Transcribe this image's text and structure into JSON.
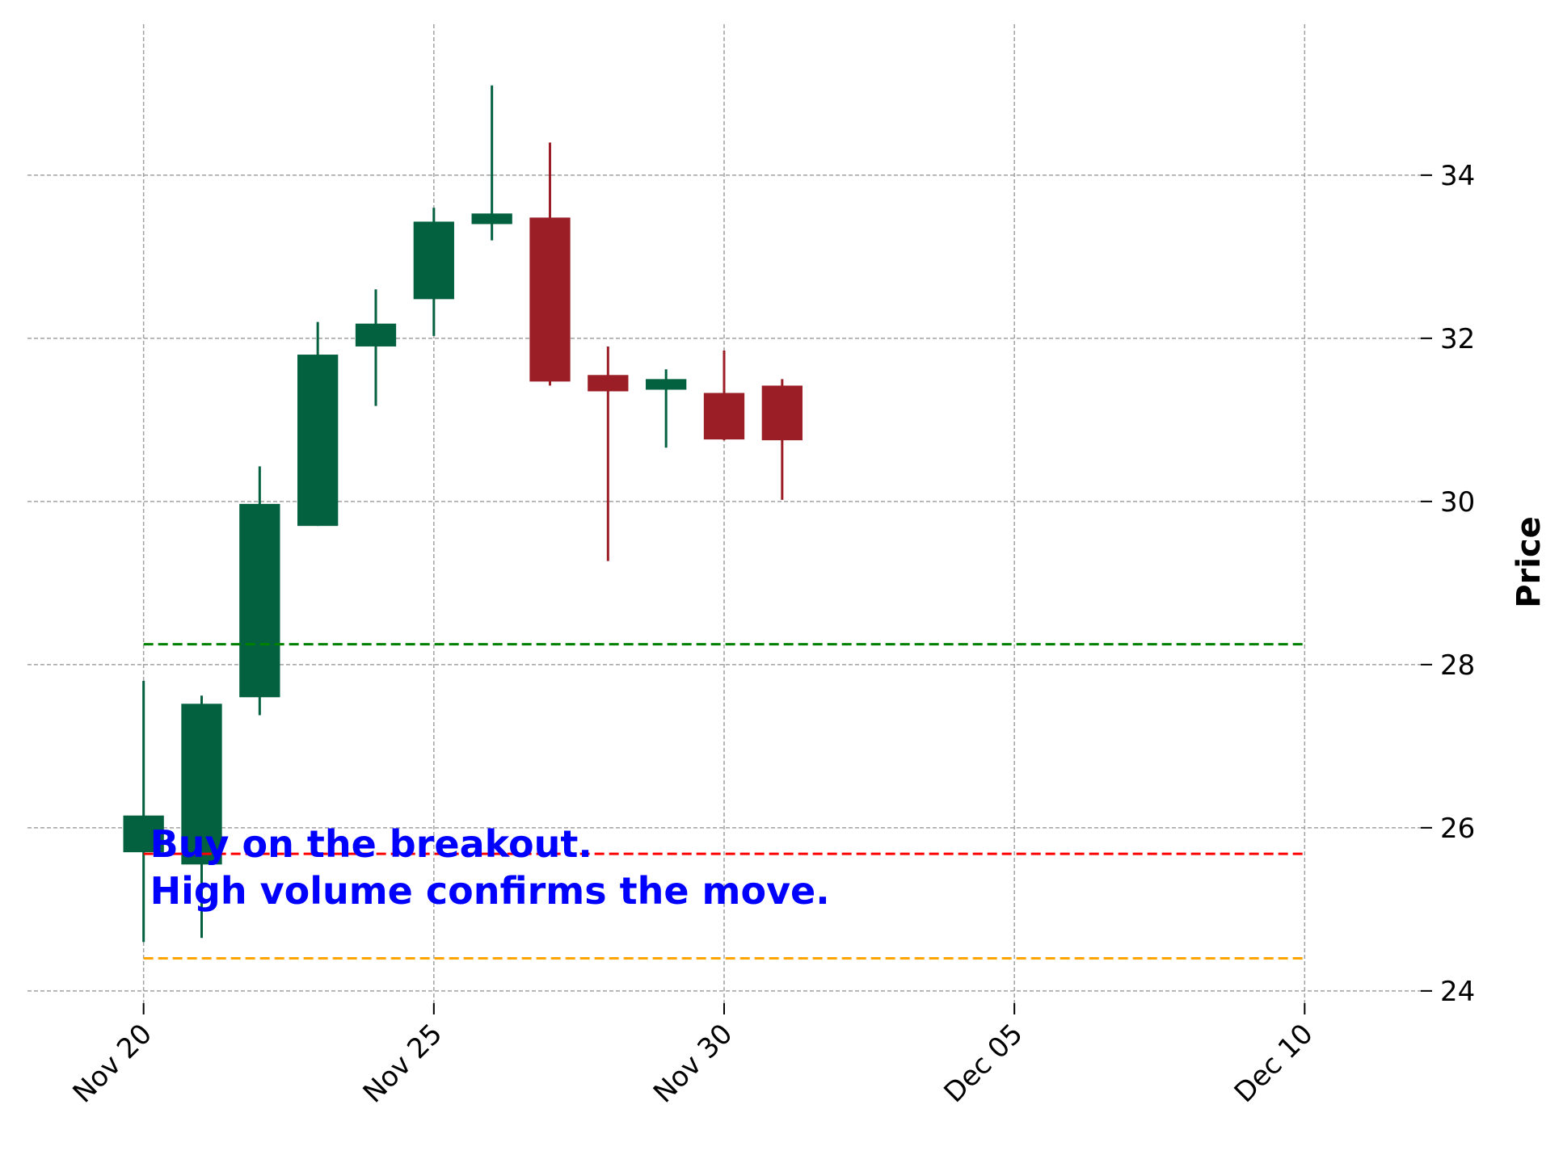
{
  "chart_data": {
    "type": "candlestick",
    "ylabel": "Price",
    "ylim": [
      23.85,
      35.85
    ],
    "xlim": [
      "2023-11-18",
      "2023-12-12"
    ],
    "y_ticks": [
      24,
      26,
      28,
      30,
      32,
      34
    ],
    "x_ticks": [
      {
        "date": "2023-11-20",
        "label": "Nov 20"
      },
      {
        "date": "2023-11-25",
        "label": "Nov 25"
      },
      {
        "date": "2023-11-30",
        "label": "Nov 30"
      },
      {
        "date": "2023-12-05",
        "label": "Dec 05"
      },
      {
        "date": "2023-12-10",
        "label": "Dec 10"
      }
    ],
    "grid": true,
    "colors": {
      "up": "#03613f",
      "down": "#9b1e27",
      "grid": "#a0a0a0"
    },
    "candles": [
      {
        "date": "2023-11-20",
        "open": 25.7,
        "high": 27.8,
        "low": 24.6,
        "close": 26.15
      },
      {
        "date": "2023-11-21",
        "open": 25.55,
        "high": 27.62,
        "low": 24.65,
        "close": 27.52
      },
      {
        "date": "2023-11-22",
        "open": 27.6,
        "high": 30.43,
        "low": 27.38,
        "close": 29.97
      },
      {
        "date": "2023-11-23",
        "open": 29.7,
        "high": 32.2,
        "low": 29.7,
        "close": 31.8
      },
      {
        "date": "2023-11-24",
        "open": 31.9,
        "high": 32.6,
        "low": 31.17,
        "close": 32.18
      },
      {
        "date": "2023-11-25",
        "open": 32.48,
        "high": 33.6,
        "low": 32.03,
        "close": 33.43
      },
      {
        "date": "2023-11-26",
        "open": 33.4,
        "high": 35.1,
        "low": 33.2,
        "close": 33.53
      },
      {
        "date": "2023-11-27",
        "open": 33.48,
        "high": 34.4,
        "low": 31.42,
        "close": 31.47
      },
      {
        "date": "2023-11-28",
        "open": 31.55,
        "high": 31.9,
        "low": 29.27,
        "close": 31.35
      },
      {
        "date": "2023-11-29",
        "open": 31.37,
        "high": 31.62,
        "low": 30.66,
        "close": 31.5
      },
      {
        "date": "2023-11-30",
        "open": 31.33,
        "high": 31.85,
        "low": 30.75,
        "close": 30.76
      },
      {
        "date": "2023-12-01",
        "open": 31.42,
        "high": 31.5,
        "low": 30.02,
        "close": 30.75
      }
    ],
    "hlines": [
      {
        "y": 28.25,
        "color": "#008000"
      },
      {
        "y": 25.68,
        "color": "#ff0000"
      },
      {
        "y": 24.4,
        "color": "#ffa500"
      }
    ],
    "annotation": {
      "lines": [
        "Buy on the breakout.",
        "High volume confirms the move."
      ],
      "x": "2023-11-20",
      "y": 25.8,
      "color": "#0000ff"
    }
  }
}
